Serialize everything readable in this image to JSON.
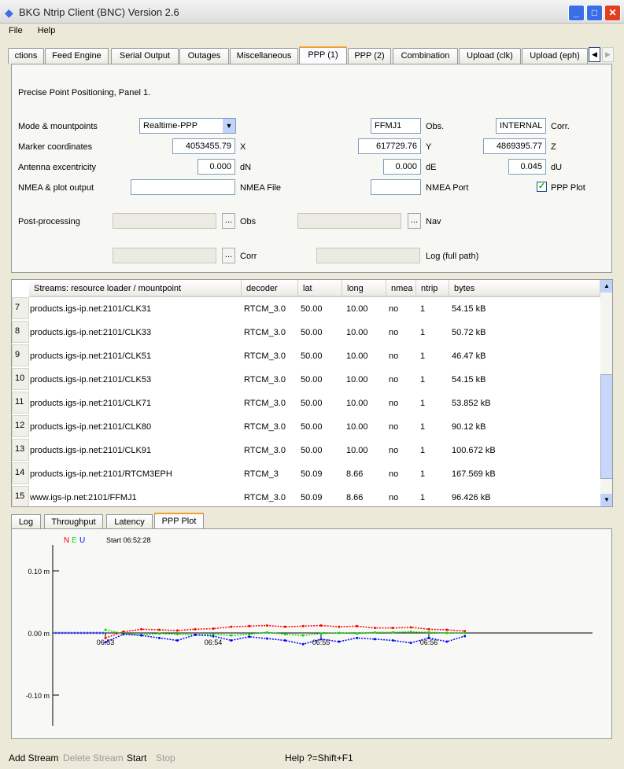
{
  "window": {
    "title": "BKG Ntrip Client (BNC) Version 2.6"
  },
  "menu": [
    "File",
    "Help"
  ],
  "tabs": [
    "ctions",
    "Feed Engine",
    "Serial Output",
    "Outages",
    "Miscellaneous",
    "PPP (1)",
    "PPP (2)",
    "Combination",
    "Upload (clk)",
    "Upload (eph)"
  ],
  "selected_tab": "PPP (1)",
  "ppp": {
    "heading": "Precise Point Positioning, Panel 1.",
    "mode_label": "Mode & mountpoints",
    "mode_value": "Realtime-PPP",
    "obs_mount": "FFMJ1",
    "obs_label": "Obs.",
    "corr_mount": "INTERNAL",
    "corr_label": "Corr.",
    "marker_label": "Marker coordinates",
    "x": "4053455.79",
    "x_label": "X",
    "y": "617729.76",
    "y_label": "Y",
    "z": "4869395.77",
    "z_label": "Z",
    "ant_label": "Antenna excentricity",
    "dn": "0.000",
    "dn_label": "dN",
    "de": "0.000",
    "de_label": "dE",
    "du": "0.045",
    "du_label": "dU",
    "nmea_label": "NMEA & plot output",
    "nmea_file": "",
    "nmea_file_label": "NMEA File",
    "nmea_port": "",
    "nmea_port_label": "NMEA Port",
    "plot_label": "PPP Plot",
    "plot_checked": true,
    "post_label": "Post-processing",
    "obs2_label": "Obs",
    "nav_label": "Nav",
    "corr2_label": "Corr",
    "log_label": "Log (full path)",
    "browse": "..."
  },
  "streams": {
    "headers": [
      "Streams:   resource loader / mountpoint",
      "decoder",
      "lat",
      "long",
      "nmea",
      "ntrip",
      "bytes"
    ],
    "rows": [
      [
        "7",
        "products.igs-ip.net:2101/CLK31",
        "RTCM_3.0",
        "50.00",
        "10.00",
        "no",
        "1",
        "54.15 kB"
      ],
      [
        "8",
        "products.igs-ip.net:2101/CLK33",
        "RTCM_3.0",
        "50.00",
        "10.00",
        "no",
        "1",
        "50.72 kB"
      ],
      [
        "9",
        "products.igs-ip.net:2101/CLK51",
        "RTCM_3.0",
        "50.00",
        "10.00",
        "no",
        "1",
        "46.47 kB"
      ],
      [
        "10",
        "products.igs-ip.net:2101/CLK53",
        "RTCM_3.0",
        "50.00",
        "10.00",
        "no",
        "1",
        "54.15 kB"
      ],
      [
        "11",
        "products.igs-ip.net:2101/CLK71",
        "RTCM_3.0",
        "50.00",
        "10.00",
        "no",
        "1",
        "53.852 kB"
      ],
      [
        "12",
        "products.igs-ip.net:2101/CLK80",
        "RTCM_3.0",
        "50.00",
        "10.00",
        "no",
        "1",
        "90.12 kB"
      ],
      [
        "13",
        "products.igs-ip.net:2101/CLK91",
        "RTCM_3.0",
        "50.00",
        "10.00",
        "no",
        "1",
        "100.672 kB"
      ],
      [
        "14",
        "products.igs-ip.net:2101/RTCM3EPH",
        "RTCM_3",
        "50.09",
        "8.66",
        "no",
        "1",
        "167.569 kB"
      ],
      [
        "15",
        "www.igs-ip.net:2101/FFMJ1",
        "RTCM_3.0",
        "50.09",
        "8.66",
        "no",
        "1",
        "96.426 kB"
      ]
    ]
  },
  "bottom_tabs": [
    "Log",
    "Throughput",
    "Latency",
    "PPP Plot"
  ],
  "plot": {
    "legend": [
      "N",
      "E",
      "U"
    ],
    "colors": {
      "N": "#ff0000",
      "E": "#00e000",
      "U": "#0000ff"
    },
    "start": "Start 06:52:28",
    "yticks": [
      "0.10 m",
      "0.00 m",
      "-0.10 m"
    ],
    "xticks": [
      "06:53",
      "06:54",
      "06:55",
      "06:56"
    ],
    "t_seconds_from_0653": [
      0,
      10,
      20,
      30,
      40,
      50,
      60,
      70,
      80,
      90,
      100,
      110,
      120,
      130,
      140,
      150,
      160,
      170,
      180,
      190,
      200
    ],
    "N": [
      -0.008,
      0.002,
      0.006,
      0.005,
      0.004,
      0.006,
      0.007,
      0.01,
      0.011,
      0.012,
      0.01,
      0.011,
      0.012,
      0.01,
      0.011,
      0.008,
      0.008,
      0.009,
      0.006,
      0.005,
      0.003
    ],
    "E": [
      0.005,
      -0.001,
      -0.003,
      -0.001,
      -0.002,
      -0.003,
      -0.002,
      -0.004,
      -0.002,
      0.001,
      -0.002,
      -0.004,
      -0.001,
      0.0,
      -0.001,
      0.001,
      0.001,
      0.002,
      0.001,
      0.0,
      0.0
    ],
    "U": [
      -0.015,
      -0.002,
      -0.004,
      -0.008,
      -0.012,
      -0.003,
      -0.005,
      -0.012,
      -0.006,
      -0.009,
      -0.012,
      -0.018,
      -0.01,
      -0.014,
      -0.008,
      -0.01,
      -0.012,
      -0.016,
      -0.008,
      -0.014,
      -0.005
    ]
  },
  "status": {
    "add": "Add Stream",
    "delete": "Delete Stream",
    "start": "Start",
    "stop": "Stop",
    "help": "Help ?=Shift+F1"
  }
}
